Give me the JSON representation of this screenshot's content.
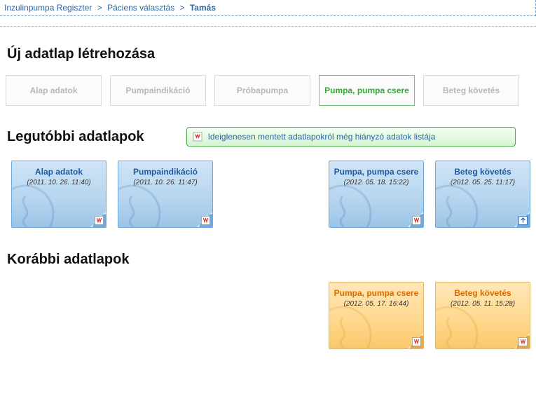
{
  "breadcrumb": {
    "items": [
      "Inzulinpumpa Regiszter",
      "Páciens választás",
      "Tamás"
    ],
    "separator": ">"
  },
  "sections": {
    "new_sheet": "Új adatlap létrehozása",
    "recent_sheets": "Legutóbbi adatlapok",
    "earlier_sheets": "Korábbi adatlapok"
  },
  "tabs": [
    {
      "label": "Alap adatok",
      "selected": false
    },
    {
      "label": "Pumpaindikáció",
      "selected": false
    },
    {
      "label": "Próbapumpa",
      "selected": false
    },
    {
      "label": "Pumpa, pumpa csere",
      "selected": true
    },
    {
      "label": "Beteg követés",
      "selected": false
    }
  ],
  "notice": {
    "label": "Ideiglenesen mentett adatlapokról még hiányzó adatok listája"
  },
  "recent_cards": [
    {
      "slot": 0,
      "title": "Alap adatok",
      "date": "(2011. 10. 26. 11:40)",
      "badge": "pdf",
      "variant": "blue"
    },
    {
      "slot": 1,
      "title": "Pumpaindikáció",
      "date": "(2011. 10. 26. 11:47)",
      "badge": "pdf",
      "variant": "blue"
    },
    {
      "slot": 3,
      "title": "Pumpa, pumpa csere",
      "date": "(2012. 05. 18. 15:22)",
      "badge": "pdf",
      "variant": "blue"
    },
    {
      "slot": 4,
      "title": "Beteg követés",
      "date": "(2012. 05. 25. 11:17)",
      "badge": "open",
      "variant": "blue"
    }
  ],
  "earlier_cards": [
    {
      "slot": 3,
      "title": "Pumpa, pumpa csere",
      "date": "(2012. 05. 17. 16:44)",
      "badge": "pdf",
      "variant": "orange"
    },
    {
      "slot": 4,
      "title": "Beteg követés",
      "date": "(2012. 05. 11. 15:28)",
      "badge": "pdf",
      "variant": "orange"
    }
  ],
  "colors": {
    "breadcrumb_text": "#2a66a8",
    "breadcrumb_border": "#6fa3d9",
    "tab_border": "#dcdcdc",
    "tab_text": "#b8b8b8",
    "tab_selected_border": "#6fc96f",
    "tab_selected_text": "#34a834",
    "notice_border": "#4aa84a",
    "notice_bg_top": "#f4fff2",
    "notice_bg_bottom": "#d6f3d2",
    "notice_text": "#2a66a8",
    "card_blue_border": "#6fa9dd",
    "card_blue_bg_top": "#cfe4f7",
    "card_blue_bg_bottom": "#9cc4e6",
    "card_blue_title": "#1e5aa0",
    "card_orange_border": "#e6b766",
    "card_orange_bg_top": "#ffe7b8",
    "card_orange_bg_bottom": "#f9c86a",
    "card_orange_title": "#d66b00",
    "pdf_red": "#d13b2f",
    "open_blue": "#2a66a8"
  }
}
